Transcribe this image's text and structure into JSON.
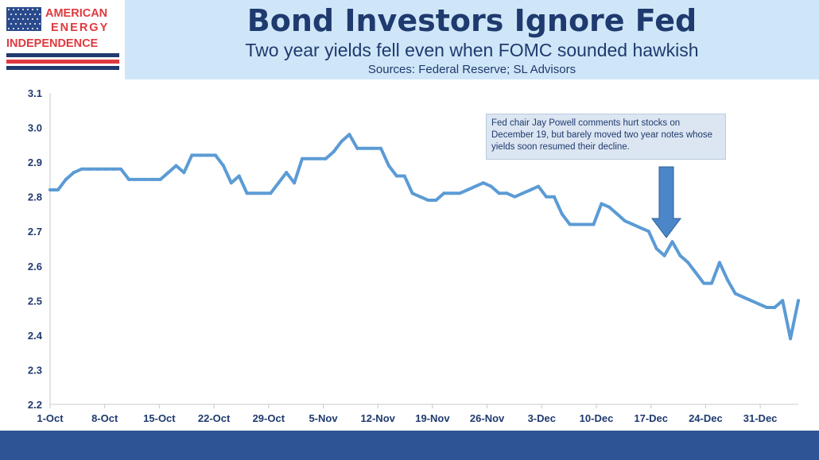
{
  "header": {
    "title": "Bond Investors Ignore Fed",
    "subtitle": "Two year yields fell even when FOMC sounded hawkish",
    "sources": "Sources: Federal Reserve; SL Advisors"
  },
  "logo": {
    "line1": "AMERICAN",
    "line2": "ENERGY",
    "line3": "INDEPENDENCE",
    "colors": {
      "red": "#e0393e",
      "navy": "#1f3a6e"
    }
  },
  "annotation": {
    "text": "Fed chair Jay Powell comments hurt stocks on December 19, but barely moved two year notes whose yields soon resumed their decline."
  },
  "chart_data": {
    "type": "line",
    "title": "Bond Investors Ignore Fed",
    "xlabel": "",
    "ylabel": "",
    "ylim": [
      2.2,
      3.1
    ],
    "yticks": [
      2.2,
      2.3,
      2.4,
      2.5,
      2.6,
      2.7,
      2.8,
      2.9,
      3.0,
      3.1
    ],
    "ytick_labels": [
      "2.2",
      "2.3",
      "2.4",
      "2.5",
      "2.6",
      "2.7",
      "2.8",
      "2.9",
      "3.0",
      "3.1"
    ],
    "xticks": [
      "1-Oct",
      "8-Oct",
      "15-Oct",
      "22-Oct",
      "29-Oct",
      "5-Nov",
      "12-Nov",
      "19-Nov",
      "26-Nov",
      "3-Dec",
      "10-Dec",
      "17-Dec",
      "24-Dec",
      "31-Dec"
    ],
    "grid": false,
    "line_color": "#5b9bd5",
    "series": [
      {
        "values": [
          2.82,
          2.82,
          2.85,
          2.87,
          2.88,
          2.88,
          2.88,
          2.88,
          2.88,
          2.88,
          2.85,
          2.85,
          2.85,
          2.85,
          2.85,
          2.87,
          2.89,
          2.87,
          2.92,
          2.92,
          2.92,
          2.92,
          2.89,
          2.84,
          2.86,
          2.81,
          2.81,
          2.81,
          2.81,
          2.84,
          2.87,
          2.84,
          2.91,
          2.91,
          2.91,
          2.91,
          2.93,
          2.96,
          2.98,
          2.94,
          2.94,
          2.94,
          2.94,
          2.89,
          2.86,
          2.86,
          2.81,
          2.8,
          2.79,
          2.79,
          2.81,
          2.81,
          2.81,
          2.82,
          2.83,
          2.84,
          2.83,
          2.81,
          2.81,
          2.8,
          2.81,
          2.82,
          2.83,
          2.8,
          2.8,
          2.75,
          2.72,
          2.72,
          2.72,
          2.72,
          2.78,
          2.77,
          2.75,
          2.73,
          2.72,
          2.71,
          2.7,
          2.65,
          2.63,
          2.67,
          2.63,
          2.61,
          2.58,
          2.55,
          2.55,
          2.61,
          2.56,
          2.52,
          2.51,
          2.5,
          2.49,
          2.48,
          2.48,
          2.5,
          2.39,
          2.5
        ]
      }
    ]
  }
}
